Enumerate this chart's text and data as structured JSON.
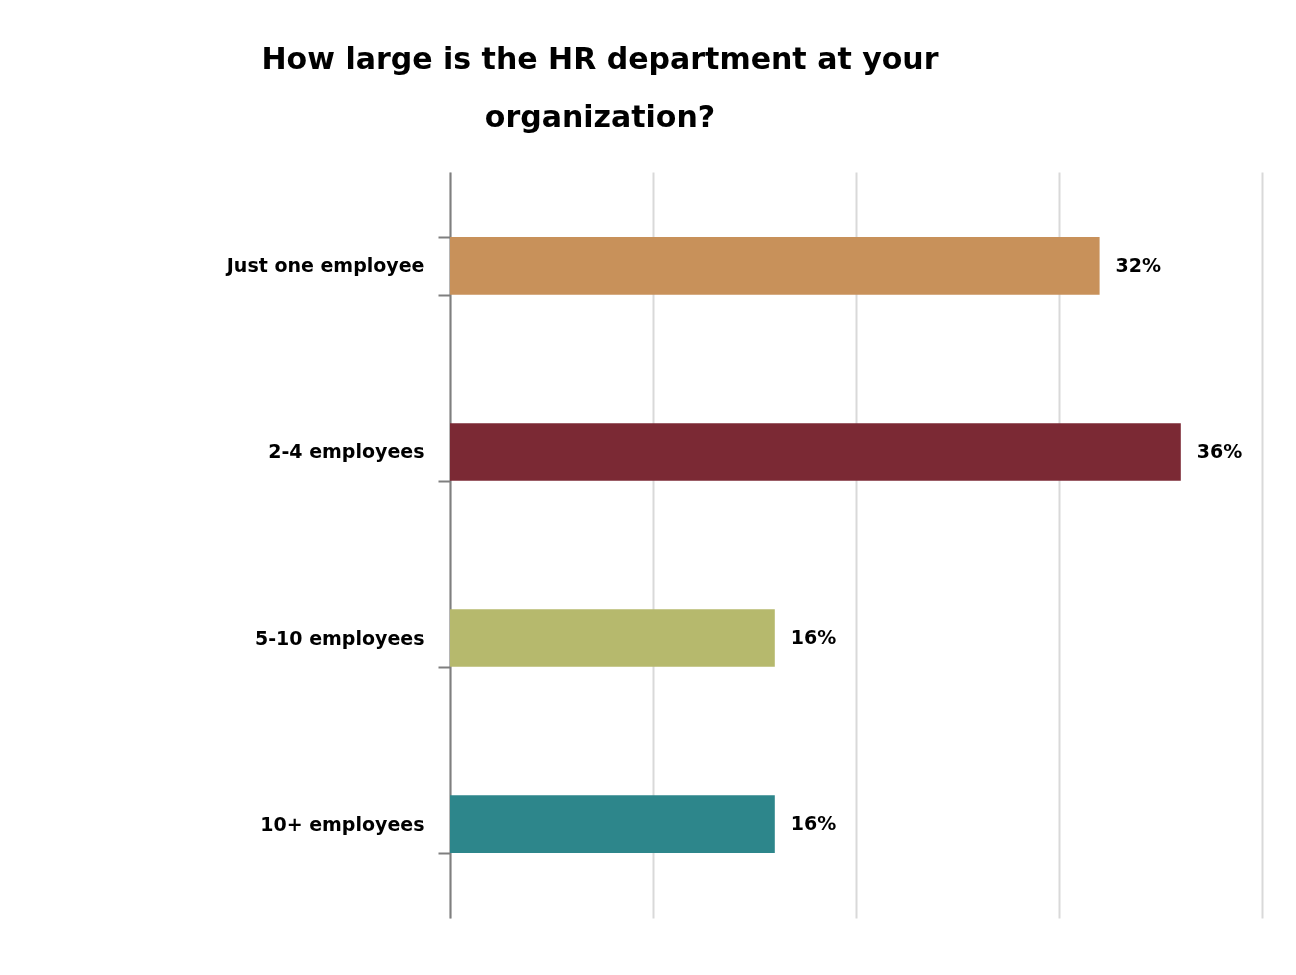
{
  "chart_data": {
    "type": "bar",
    "orientation": "horizontal",
    "title": "How large is the HR department at your organization?",
    "categories": [
      "Just one employee",
      "2-4 employees",
      "5-10 employees",
      "10+ employees"
    ],
    "values": [
      32,
      36,
      16,
      16
    ],
    "value_labels": [
      "32%",
      "36%",
      "16%",
      "16%"
    ],
    "colors": [
      "#c8915a",
      "#7b2934",
      "#b6b96d",
      "#2d868b"
    ],
    "xlim": [
      0,
      40
    ],
    "xticks": [
      {
        "value": 0,
        "label": null
      },
      {
        "value": 10,
        "label": null
      },
      {
        "value": 20,
        "label": null
      },
      {
        "value": 30,
        "label": null
      },
      {
        "value": 40,
        "label": null
      }
    ],
    "grid": "x",
    "tick_labels": "y"
  }
}
